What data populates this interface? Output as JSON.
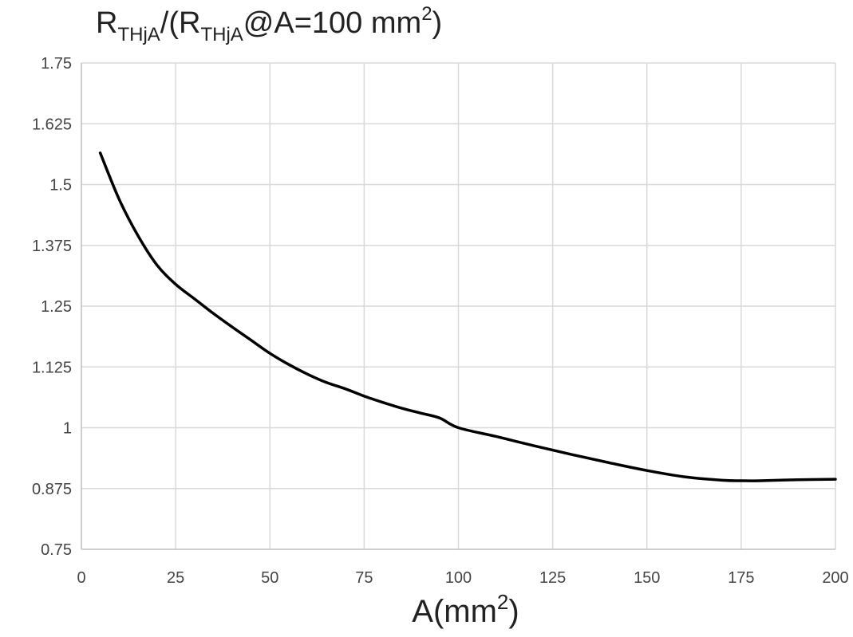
{
  "chart_data": {
    "type": "line",
    "title": {
      "base": "R",
      "sub1": "THjA",
      "mid": "/(R",
      "sub2": "THjA",
      "after": "@A=100 mm",
      "sup": "2",
      "close": ")"
    },
    "xlabel": {
      "base": "A(mm",
      "sup": "2",
      "close": ")"
    },
    "ylabel": "",
    "xlim": [
      0,
      200
    ],
    "ylim": [
      0.75,
      1.75
    ],
    "xticks": [
      "0",
      "25",
      "50",
      "75",
      "100",
      "125",
      "150",
      "175",
      "200"
    ],
    "yticks": [
      "0.75",
      "0.875",
      "1",
      "1.125",
      "1.25",
      "1.375",
      "1.5",
      "1.625",
      "1.75"
    ],
    "grid": true,
    "legend": "none",
    "line_color": "#000000",
    "grid_color": "#d9d9d9",
    "series": [
      {
        "x": [
          5,
          10,
          15,
          20,
          25,
          30,
          35,
          40,
          45,
          50,
          55,
          60,
          65,
          70,
          75,
          80,
          85,
          90,
          95,
          100,
          110,
          120,
          130,
          140,
          150,
          160,
          170,
          175,
          180,
          190,
          200
        ],
        "y": [
          1.565,
          1.47,
          1.395,
          1.335,
          1.295,
          1.265,
          1.235,
          1.207,
          1.18,
          1.153,
          1.13,
          1.11,
          1.093,
          1.08,
          1.065,
          1.052,
          1.04,
          1.03,
          1.02,
          1.0,
          0.982,
          0.963,
          0.945,
          0.928,
          0.912,
          0.899,
          0.892,
          0.891,
          0.891,
          0.893,
          0.894
        ]
      }
    ]
  }
}
